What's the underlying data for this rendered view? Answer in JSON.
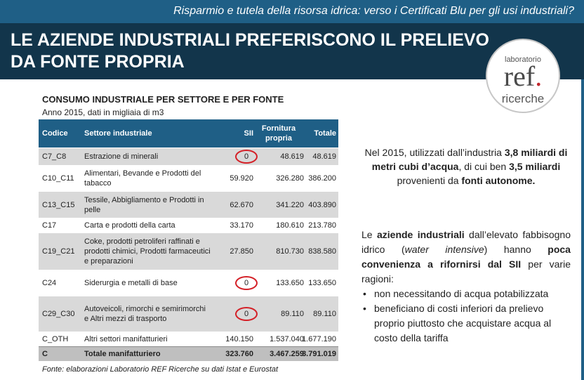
{
  "header": {
    "subtitle": "Risparmio e tutela della risorsa idrica: verso i Certificati Blu per gli usi industriali?",
    "title": "LE AZIENDE INDUSTRIALI PREFERISCONO IL PRELIEVO DA FONTE PROPRIA"
  },
  "logo": {
    "line1": "laboratorio",
    "line2": "ref",
    "dot": ".",
    "line3": "ricerche"
  },
  "colors": {
    "topbar": "#1f5f86",
    "titlebar": "#12354b",
    "highlight_circle": "#d42027"
  },
  "table": {
    "title": "CONSUMO INDUSTRIALE PER SETTORE E PER FONTE",
    "subtitle": "Anno 2015, dati in migliaia di m3",
    "columns": [
      "Codice",
      "Settore industriale",
      "SII",
      "Fornitura propria",
      "Totale"
    ],
    "rows": [
      {
        "code": "C7_C8",
        "sector": "Estrazione di minerali",
        "sii": "0",
        "fornitura": "48.619",
        "totale": "48.619"
      },
      {
        "code": "C10_C11",
        "sector": "Alimentari, Bevande e Prodotti del tabacco",
        "sii": "59.920",
        "fornitura": "326.280",
        "totale": "386.200"
      },
      {
        "code": "C13_C15",
        "sector": "Tessile, Abbigliamento e Prodotti in pelle",
        "sii": "62.670",
        "fornitura": "341.220",
        "totale": "403.890"
      },
      {
        "code": "C17",
        "sector": "Carta e prodotti della carta",
        "sii": "33.170",
        "fornitura": "180.610",
        "totale": "213.780"
      },
      {
        "code": "C19_C21",
        "sector": "Coke, prodotti petroliferi raffinati e prodotti chimici, Prodotti farmaceutici e preparazioni",
        "sii": "27.850",
        "fornitura": "810.730",
        "totale": "838.580"
      },
      {
        "code": "C24",
        "sector": "Siderurgia e metalli di base",
        "sii": "0",
        "fornitura": "133.650",
        "totale": "133.650"
      },
      {
        "code": "C29_C30",
        "sector": "Autoveicoli, rimorchi e semirimorchi e Altri mezzi di trasporto",
        "sii": "0",
        "fornitura": "89.110",
        "totale": "89.110"
      },
      {
        "code": "C_OTH",
        "sector": "Altri settori manifatturieri",
        "sii": "140.150",
        "fornitura": "1.537.040",
        "totale": "1.677.190"
      }
    ],
    "total": {
      "code": "C",
      "sector": "Totale manifatturiero",
      "sii": "323.760",
      "fornitura": "3.467.259",
      "totale": "3.791.019"
    },
    "source": "Fonte: elaborazioni Laboratorio REF Ricerche su dati Istat e Eurostat"
  },
  "note1": {
    "p1": "Nel 2015, utilizzati dall’industria ",
    "b1": "3,8 miliardi di metri cubi d’acqua",
    "p2": ", di cui ben ",
    "b2": "3,5 miliardi",
    "p3": " provenienti da ",
    "b3": "fonti autonome."
  },
  "note2": {
    "p1": "Le ",
    "b1": "aziende industriali",
    "p2": " dall’elevato fabbisogno idrico (",
    "i1": "water intensive",
    "p3": ") hanno ",
    "b2": "poca convenienza a rifornirsi dal SII",
    "p4": " per varie ragioni:",
    "bullets": [
      "non necessitando di acqua potabilizzata",
      "beneficiano di costi inferiori da prelievo proprio piuttosto che acquistare acqua al costo della tariffa"
    ]
  }
}
